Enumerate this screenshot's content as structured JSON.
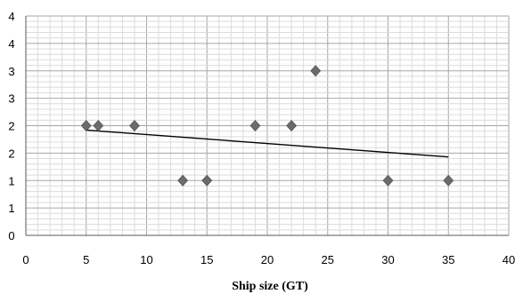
{
  "chart_data": {
    "type": "scatter",
    "title": "",
    "xlabel": "Ship size (GT)",
    "ylabel": "",
    "xlim": [
      0,
      40
    ],
    "ylim": [
      0,
      4
    ],
    "x_ticks": [
      0,
      5,
      10,
      15,
      20,
      25,
      30,
      35,
      40
    ],
    "x_tick_labels": [
      "0",
      "5",
      "10",
      "15",
      "20",
      "25",
      "30",
      "35",
      "40"
    ],
    "y_ticks": [
      0,
      0.5,
      1,
      1.5,
      2,
      2.5,
      3,
      3.5,
      4
    ],
    "y_tick_labels": [
      "0",
      "1",
      "1",
      "2",
      "2",
      "3",
      "3",
      "4",
      "4"
    ],
    "grid": true,
    "marker": "diamond",
    "marker_color": "#6b6b6b",
    "grid_major_color": "#a6a6a6",
    "grid_minor_color": "#dcdcdc",
    "trendline_color": "#000000",
    "series": [
      {
        "x": [
          5,
          6,
          9,
          13,
          15,
          19,
          22,
          24,
          30,
          35
        ],
        "y": [
          2.0,
          2.0,
          2.0,
          1.0,
          1.0,
          2.0,
          2.0,
          3.0,
          1.0,
          1.0
        ]
      }
    ],
    "trendline": {
      "x": [
        5,
        35
      ],
      "y": [
        1.92,
        1.43
      ]
    }
  }
}
